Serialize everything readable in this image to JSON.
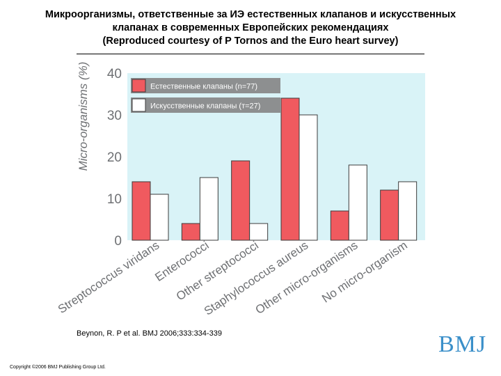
{
  "header": {
    "title_line1": "Микроорганизмы, ответственные за ИЭ естественных клапанов и искусственных",
    "title_line2": "клапанах в современных Европейских рекомендациях",
    "title_line3": "(Reproduced courtesy of P Tornos and the Euro heart survey)"
  },
  "source_text": "Beynon, R. P et al. BMJ 2006;333:334-339",
  "copyright_text": "Copyright ©2006 BMJ Publishing Group Ltd.",
  "logo_text": "BMJ",
  "colors": {
    "plot_bg": "#d9f3f7",
    "native": "#f05a5f",
    "prosthetic": "#ffffff",
    "axis_text": "#6e7073",
    "logo": "#3a8fc9"
  },
  "chart_data": {
    "type": "bar",
    "ylabel": "Micro-organisms (%)",
    "ylim": [
      0,
      40
    ],
    "yticks": [
      0,
      10,
      20,
      30,
      40
    ],
    "grid": false,
    "legend_position": "top-left",
    "categories": [
      "Streptococcus viridans",
      "Enterococci",
      "Other streptococci",
      "Staphylococcus aureus",
      "Other micro-organisms",
      "No micro-organism"
    ],
    "series": [
      {
        "name": "Естественные клапаны (n=77)",
        "values": [
          14,
          4,
          19,
          34,
          7,
          12
        ]
      },
      {
        "name": "Искусственные клапаны (т=27)",
        "values": [
          11,
          15,
          4,
          30,
          18,
          14
        ]
      }
    ]
  }
}
